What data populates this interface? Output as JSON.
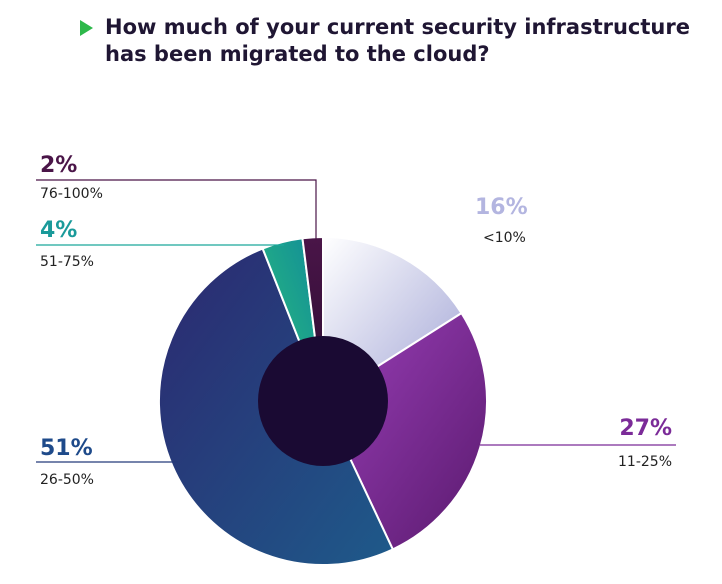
{
  "title": "How much of your current security infrastructure has been migrated to the cloud?",
  "chart_data": {
    "type": "pie",
    "title": "How much of your current security infrastructure has been migrated to the cloud?",
    "categories": [
      "<10%",
      "11-25%",
      "26-50%",
      "51-75%",
      "76-100%"
    ],
    "values": [
      16,
      27,
      51,
      4,
      2
    ],
    "labels": [
      "16%",
      "27%",
      "51%",
      "4%",
      "2%"
    ],
    "colors": [
      "#b3b5d9",
      "#7b2b98",
      "#243a7a",
      "#1aa89a",
      "#4a1548"
    ],
    "donut": true
  }
}
